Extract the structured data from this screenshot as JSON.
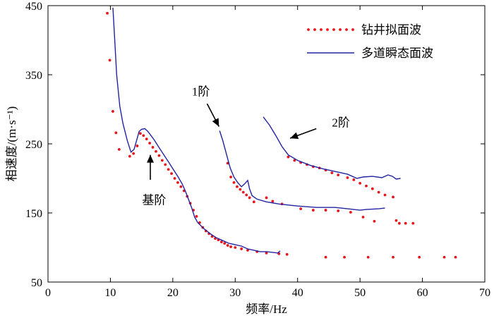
{
  "chart_data": {
    "type": "line",
    "xlabel": "频率/Hz",
    "ylabel": "相速度/(m·s⁻¹)",
    "xlim": [
      0,
      70
    ],
    "ylim": [
      50,
      450
    ],
    "xticks": [
      0,
      10,
      20,
      30,
      40,
      50,
      60,
      70
    ],
    "yticks": [
      50,
      150,
      250,
      350,
      450
    ],
    "grid": false,
    "legend": {
      "position": "top-right",
      "entries": [
        {
          "label": "钻井拟面波",
          "style": "dotted-red"
        },
        {
          "label": "多道瞬态面波",
          "style": "solid-blue"
        }
      ]
    },
    "series": [
      {
        "name": "钻井拟面波",
        "style": "dotted-red",
        "points": [
          [
            9.5,
            439
          ],
          [
            9.9,
            371
          ],
          [
            10.4,
            297
          ],
          [
            10.9,
            266
          ],
          [
            11.4,
            242
          ],
          [
            13.1,
            232
          ],
          [
            13.7,
            236
          ],
          [
            14.3,
            247
          ],
          [
            14.8,
            265
          ],
          [
            15.3,
            262
          ],
          [
            15.8,
            257
          ],
          [
            16.3,
            251
          ],
          [
            16.8,
            245
          ],
          [
            17.3,
            239
          ],
          [
            17.8,
            233
          ],
          [
            18.3,
            226
          ],
          [
            18.8,
            220
          ],
          [
            19.3,
            213
          ],
          [
            19.8,
            207
          ],
          [
            20.3,
            200
          ],
          [
            20.8,
            194
          ],
          [
            21.3,
            188
          ],
          [
            21.8,
            182
          ],
          [
            22.3,
            174
          ],
          [
            22.8,
            164
          ],
          [
            23.3,
            154
          ],
          [
            23.8,
            145
          ],
          [
            24.3,
            136
          ],
          [
            24.8,
            129
          ],
          [
            25.3,
            124
          ],
          [
            25.8,
            120
          ],
          [
            26.3,
            116
          ],
          [
            26.8,
            113
          ],
          [
            27.3,
            111
          ],
          [
            27.8,
            108
          ],
          [
            28.3,
            106
          ],
          [
            28.8,
            103
          ],
          [
            29.3,
            101
          ],
          [
            30.0,
            100
          ],
          [
            31.0,
            98
          ],
          [
            32.0,
            96
          ],
          [
            33.5,
            94
          ],
          [
            35.0,
            92
          ],
          [
            37.0,
            91
          ],
          [
            38.3,
            90
          ],
          [
            44.5,
            86
          ],
          [
            47.5,
            86
          ],
          [
            51.3,
            86
          ],
          [
            55.3,
            86
          ],
          [
            59.5,
            86
          ],
          [
            63.5,
            86
          ],
          [
            65.3,
            86
          ],
          [
            28.8,
            222
          ],
          [
            29.3,
            202
          ],
          [
            29.8,
            194
          ],
          [
            30.3,
            188
          ],
          [
            30.8,
            184
          ],
          [
            31.3,
            180
          ],
          [
            31.8,
            176
          ],
          [
            32.3,
            172
          ],
          [
            33.0,
            166
          ],
          [
            35.0,
            172
          ],
          [
            36.0,
            167
          ],
          [
            37.5,
            163
          ],
          [
            40.5,
            156
          ],
          [
            42.5,
            154
          ],
          [
            44.5,
            154
          ],
          [
            46.5,
            153
          ],
          [
            48.5,
            151
          ],
          [
            50.5,
            144
          ],
          [
            52.3,
            138
          ],
          [
            38.5,
            231
          ],
          [
            39.5,
            226
          ],
          [
            40.5,
            223
          ],
          [
            41.5,
            220
          ],
          [
            42.5,
            217
          ],
          [
            43.5,
            215
          ],
          [
            44.5,
            212
          ],
          [
            45.5,
            208
          ],
          [
            46.5,
            205
          ],
          [
            48.0,
            201
          ],
          [
            49.0,
            198
          ],
          [
            50.0,
            193
          ],
          [
            51.0,
            189
          ],
          [
            52.0,
            185
          ],
          [
            53.0,
            180
          ],
          [
            54.0,
            176
          ],
          [
            55.3,
            173
          ],
          [
            55.8,
            139
          ],
          [
            56.3,
            135
          ],
          [
            57.3,
            135
          ],
          [
            58.5,
            135
          ]
        ]
      },
      {
        "name": "多道瞬态面波 基阶",
        "style": "solid-blue",
        "points": [
          [
            10.4,
            447
          ],
          [
            10.7,
            400
          ],
          [
            11.0,
            350
          ],
          [
            11.5,
            305
          ],
          [
            12.0,
            280
          ],
          [
            12.7,
            255
          ],
          [
            13.3,
            238
          ],
          [
            13.8,
            242
          ],
          [
            14.2,
            255
          ],
          [
            14.6,
            268
          ],
          [
            15.0,
            271
          ],
          [
            15.5,
            272
          ],
          [
            16.0,
            268
          ],
          [
            16.5,
            262
          ],
          [
            17.0,
            256
          ],
          [
            17.7,
            246
          ],
          [
            18.5,
            235
          ],
          [
            19.3,
            224
          ],
          [
            20.0,
            214
          ],
          [
            20.8,
            203
          ],
          [
            21.5,
            192
          ],
          [
            22.0,
            182
          ],
          [
            22.5,
            170
          ],
          [
            23.0,
            158
          ],
          [
            23.5,
            144
          ],
          [
            24.0,
            136
          ],
          [
            25.0,
            127
          ],
          [
            26.0,
            120
          ],
          [
            27.0,
            114
          ],
          [
            28.0,
            110
          ],
          [
            29.0,
            106
          ],
          [
            30.0,
            104
          ],
          [
            31.0,
            102
          ],
          [
            32.0,
            98
          ],
          [
            33.0,
            96
          ],
          [
            34.0,
            94
          ],
          [
            35.0,
            94
          ],
          [
            36.0,
            93
          ],
          [
            36.8,
            92
          ],
          [
            37.2,
            95
          ]
        ]
      },
      {
        "name": "多道瞬态面波 1阶",
        "style": "solid-blue",
        "points": [
          [
            27.5,
            269
          ],
          [
            28.0,
            255
          ],
          [
            28.6,
            235
          ],
          [
            29.2,
            215
          ],
          [
            29.8,
            202
          ],
          [
            30.4,
            194
          ],
          [
            31.0,
            188
          ],
          [
            31.5,
            192
          ],
          [
            32.0,
            197
          ],
          [
            32.3,
            185
          ],
          [
            32.7,
            175
          ],
          [
            33.5,
            170
          ],
          [
            35.0,
            166
          ],
          [
            37.0,
            163
          ],
          [
            40.0,
            160
          ],
          [
            43.0,
            158
          ],
          [
            46.0,
            158
          ],
          [
            48.0,
            156
          ],
          [
            50.0,
            154
          ],
          [
            51.0,
            155
          ],
          [
            53.0,
            156
          ],
          [
            54.0,
            157
          ]
        ]
      },
      {
        "name": "多道瞬态面波 2阶",
        "style": "solid-blue",
        "points": [
          [
            34.5,
            289
          ],
          [
            35.5,
            277
          ],
          [
            36.5,
            262
          ],
          [
            37.5,
            246
          ],
          [
            38.5,
            234
          ],
          [
            40.0,
            226
          ],
          [
            42.0,
            219
          ],
          [
            44.0,
            214
          ],
          [
            46.0,
            210
          ],
          [
            48.0,
            206
          ],
          [
            49.5,
            200
          ],
          [
            50.5,
            202
          ],
          [
            52.0,
            203
          ],
          [
            53.5,
            201
          ],
          [
            54.5,
            205
          ],
          [
            55.2,
            203
          ],
          [
            55.8,
            199
          ],
          [
            56.5,
            200
          ]
        ]
      }
    ],
    "annotations": [
      {
        "text": "基阶",
        "label_at": [
          17.0,
          163
        ],
        "arrow_to": [
          16.4,
          234
        ]
      },
      {
        "text": "1阶",
        "label_at": [
          24.5,
          320
        ],
        "arrow_to": [
          27.4,
          275
        ]
      },
      {
        "text": "2阶",
        "label_at": [
          45.5,
          275
        ],
        "arrow_to": [
          38.8,
          258
        ]
      }
    ]
  }
}
